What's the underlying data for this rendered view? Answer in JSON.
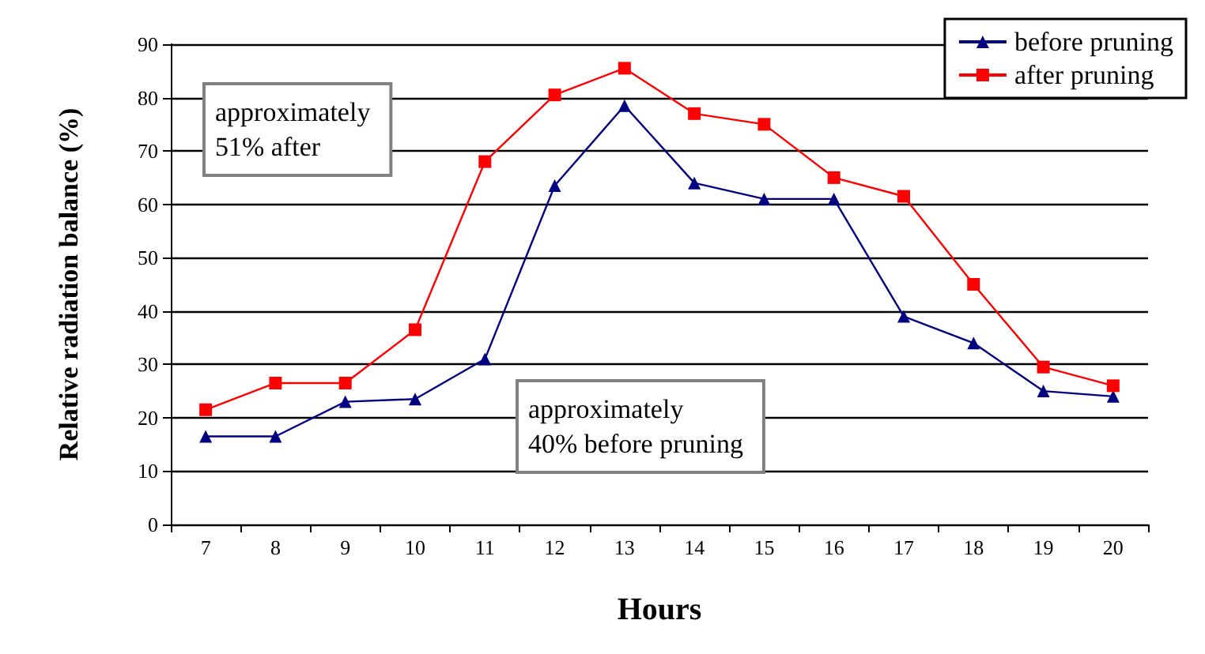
{
  "chart_data": {
    "type": "line",
    "xlabel": "Hours",
    "ylabel": "Relative radiation balance (%)",
    "categories": [
      "7",
      "8",
      "9",
      "10",
      "11",
      "12",
      "13",
      "14",
      "15",
      "16",
      "17",
      "18",
      "19",
      "20"
    ],
    "series": [
      {
        "name": "before pruning",
        "color": "#000080",
        "marker": "triangle",
        "values": [
          16.5,
          16.5,
          23,
          23.5,
          31,
          63.5,
          78.5,
          64,
          61,
          61,
          39,
          34,
          25,
          24
        ]
      },
      {
        "name": "after pruning",
        "color": "#ff0000",
        "marker": "square",
        "values": [
          21.5,
          26.5,
          26.5,
          36.5,
          68,
          80.5,
          85.5,
          77,
          75,
          65,
          61.5,
          45,
          29.5,
          26
        ]
      }
    ],
    "ylim": [
      0,
      90
    ],
    "yticks": [
      0,
      10,
      20,
      30,
      40,
      50,
      60,
      70,
      80,
      90
    ],
    "grid": "y",
    "legend": "top right",
    "line_style": "solid",
    "annotations": [
      "approximately\n51% after",
      "approximately\n40% before pruning"
    ]
  }
}
